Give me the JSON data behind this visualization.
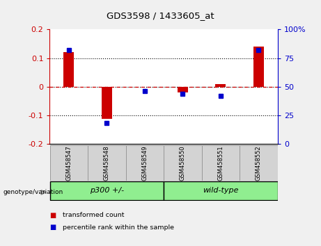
{
  "title": "GDS3598 / 1433605_at",
  "samples": [
    "GSM458547",
    "GSM458548",
    "GSM458549",
    "GSM458550",
    "GSM458551",
    "GSM458552"
  ],
  "red_values": [
    0.12,
    -0.113,
    0.0,
    -0.02,
    0.01,
    0.14
  ],
  "blue_values_pct": [
    82,
    18,
    46,
    44,
    42,
    82
  ],
  "ylim_left": [
    -0.2,
    0.2
  ],
  "ylim_right": [
    0,
    100
  ],
  "left_color": "#cc0000",
  "right_color": "#0000cc",
  "red_color": "#cc0000",
  "blue_color": "#0000cc",
  "dotted_lines": [
    -0.1,
    0.0,
    0.1
  ],
  "plot_bg": "#ffffff",
  "fig_bg": "#f0f0f0",
  "legend_red": "transformed count",
  "legend_blue": "percentile rank within the sample",
  "genotype_label": "genotype/variation",
  "group_labels": [
    "p300 +/-",
    "wild-type"
  ],
  "group_boundary": 3,
  "tick_vals_left": [
    -0.2,
    -0.1,
    0.0,
    0.1,
    0.2
  ],
  "tick_labels_left": [
    "-0.2",
    "-0.1",
    "0",
    "0.1",
    "0.2"
  ],
  "tick_vals_right": [
    0,
    25,
    50,
    75,
    100
  ],
  "tick_labels_right": [
    "0",
    "25",
    "50",
    "75",
    "100%"
  ],
  "bar_width": 0.5,
  "sample_box_color": "#d3d3d3",
  "sample_box_edge": "#999999"
}
